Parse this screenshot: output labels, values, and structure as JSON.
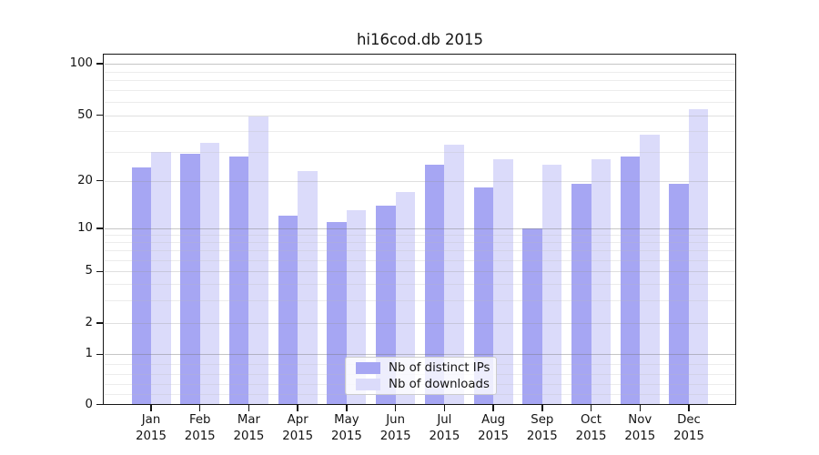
{
  "chart_data": {
    "type": "bar",
    "title": "hi16cod.db 2015",
    "categories": [
      "Jan",
      "Feb",
      "Mar",
      "Apr",
      "May",
      "Jun",
      "Jul",
      "Aug",
      "Sep",
      "Oct",
      "Nov",
      "Dec"
    ],
    "x_year_label": "2015",
    "series": [
      {
        "name": "Nb of distinct IPs",
        "color": "#a6a6f3",
        "values": [
          24,
          29,
          28,
          12,
          11,
          14,
          25,
          18,
          10,
          19,
          28,
          19
        ]
      },
      {
        "name": "Nb of downloads",
        "color": "#dbdbfa",
        "values": [
          30,
          34,
          49,
          23,
          13,
          17,
          33,
          27,
          25,
          27,
          38,
          54
        ]
      }
    ],
    "xlabel": "",
    "ylabel": "",
    "yscale": "symlog",
    "yticks": [
      0,
      1,
      2,
      5,
      10,
      20,
      50,
      100
    ],
    "ylim": [
      0,
      113
    ],
    "grid": true,
    "legend_position": "lower center"
  }
}
